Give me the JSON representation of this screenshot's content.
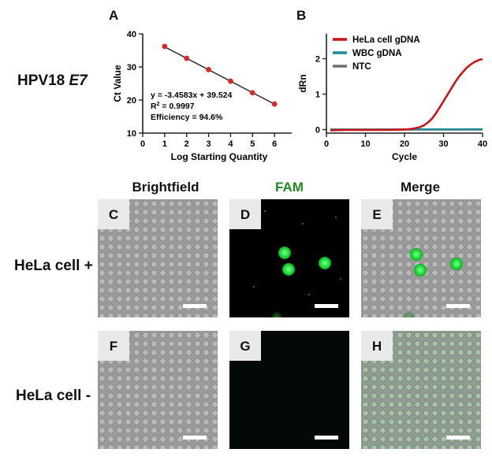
{
  "row_label_top": "HPV18 ",
  "row_label_top_gene": "E7",
  "chart_data": [
    {
      "panel": "A",
      "type": "scatter",
      "x": [
        1,
        2,
        3,
        4,
        5,
        6
      ],
      "y": [
        36.2,
        32.6,
        29.2,
        25.7,
        22.2,
        18.8
      ],
      "fit_line": {
        "slope": -3.4583,
        "intercept": 39.524
      },
      "xlabel": "Log Starting Quantity",
      "ylabel": "Ct Value",
      "xlim": [
        0,
        7
      ],
      "ylim": [
        10,
        40
      ],
      "xticks": [
        "0",
        "1",
        "2",
        "3",
        "4",
        "5",
        "6",
        "7"
      ],
      "yticks": [
        "10",
        "20",
        "30",
        "40"
      ],
      "annotations": [
        "y = -3.4583x + 39.524",
        "R",
        "2",
        " = 0.9997",
        "Efficiency = 94.6%"
      ],
      "marker_color": "#d62a2a",
      "line_color": "#222222",
      "grid": false
    },
    {
      "panel": "B",
      "type": "line",
      "xlabel": "Cycle",
      "ylabel": "dRn",
      "xlim": [
        0,
        40
      ],
      "ylim": [
        -0.1,
        2.7
      ],
      "xticks": [
        "0",
        "10",
        "20",
        "30",
        "40"
      ],
      "yticks": [
        "0",
        "1",
        "2"
      ],
      "legend_position": "top-right",
      "series": [
        {
          "name": "HeLa cell gDNA",
          "color": "#cc1414",
          "x": [
            1,
            5,
            10,
            15,
            20,
            22,
            24,
            25,
            26,
            27,
            28,
            29,
            30,
            31,
            32,
            33,
            34,
            35,
            36,
            37,
            38,
            39,
            40
          ],
          "y": [
            -0.02,
            -0.01,
            -0.01,
            -0.01,
            0.0,
            0.02,
            0.07,
            0.12,
            0.2,
            0.3,
            0.45,
            0.62,
            0.8,
            0.98,
            1.16,
            1.34,
            1.5,
            1.63,
            1.75,
            1.84,
            1.91,
            1.96,
            1.99
          ]
        },
        {
          "name": "WBC gDNA",
          "color": "#1b8c96",
          "x": [
            1,
            40
          ],
          "y": [
            0.0,
            0.01
          ]
        },
        {
          "name": "NTC",
          "color": "#6f6f6f",
          "x": [
            1,
            40
          ],
          "y": [
            0.0,
            0.0
          ]
        }
      ],
      "grid": false
    }
  ],
  "columns": {
    "brightfield": "Brightfield",
    "fam": "FAM",
    "merge": "Merge"
  },
  "fam_color": "#1f8a1f",
  "rows": {
    "plus": "HeLa cell +",
    "minus": "HeLa cell -"
  },
  "panels": {
    "A": "A",
    "B": "B",
    "C": "C",
    "D": "D",
    "E": "E",
    "F": "F",
    "G": "G",
    "H": "H"
  }
}
